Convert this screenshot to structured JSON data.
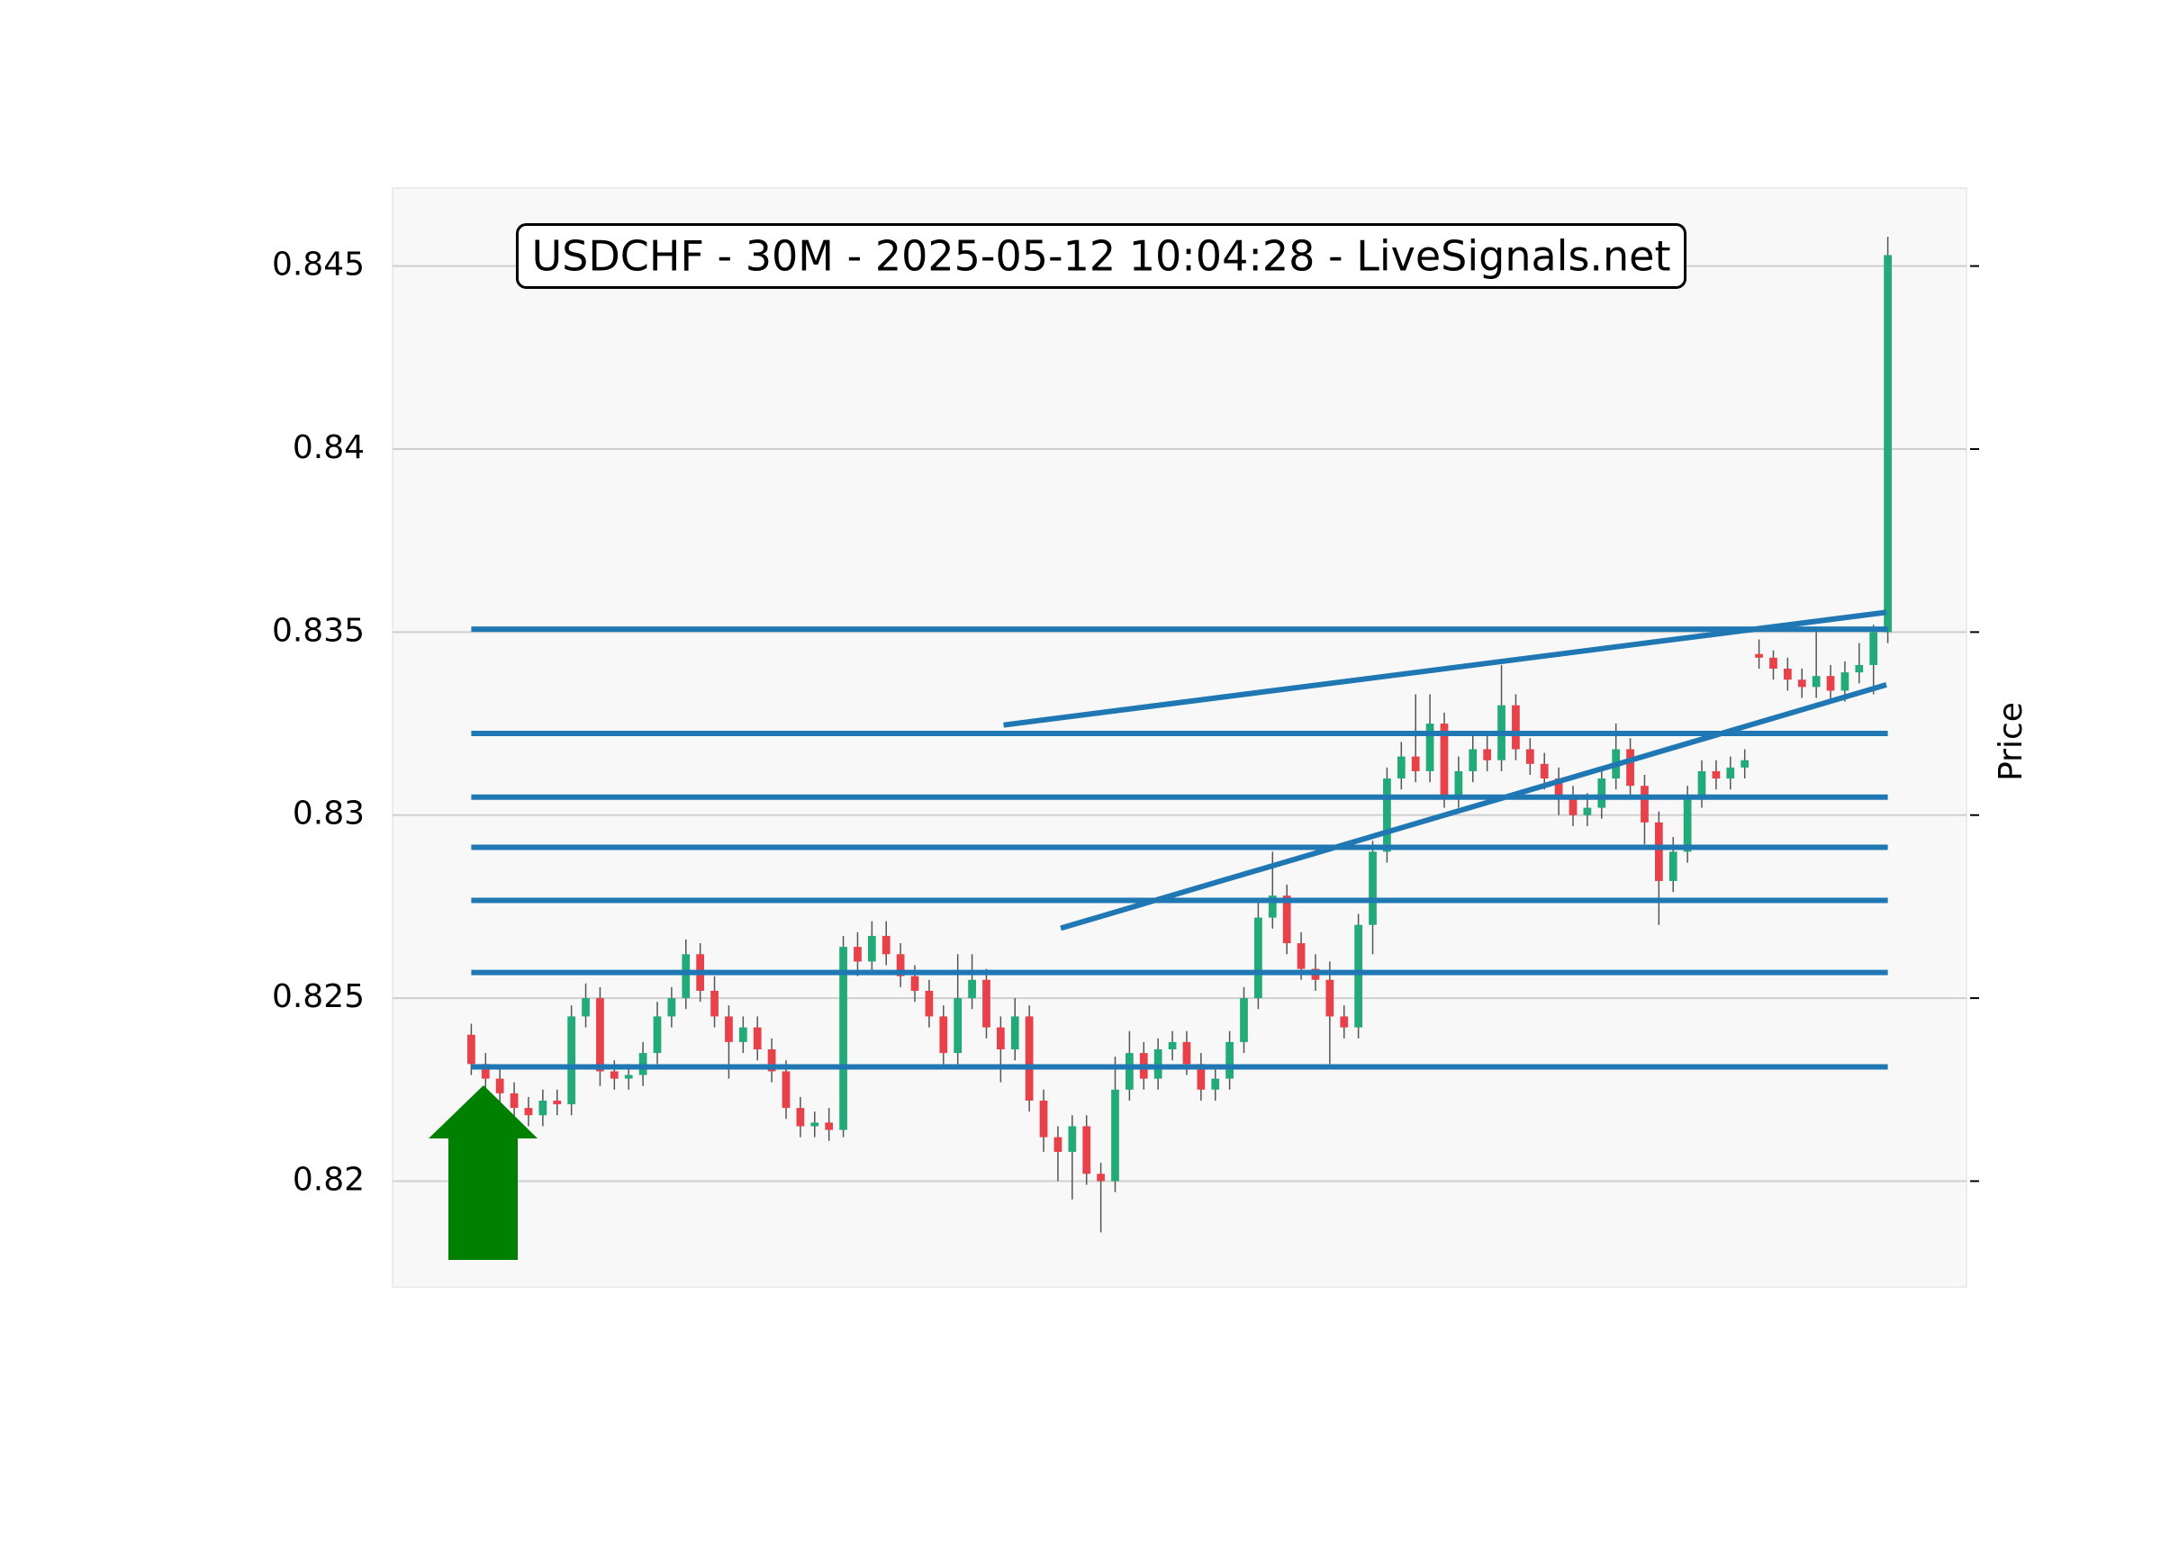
{
  "chart_data": {
    "type": "candlestick",
    "title": "USDCHF - 30M - 2025-05-12 10:04:28 - LiveSignals.net",
    "y_label": "Price",
    "ylim": [
      0.81711,
      0.84713
    ],
    "yticks": [
      0.82,
      0.825,
      0.83,
      0.835,
      0.84,
      0.845
    ],
    "xlim": [
      -5.5,
      104.5
    ],
    "grid": true,
    "up_color": "#22ab78",
    "down_color": "#e8414a",
    "level_color": "#1f77b4",
    "ohlc": [
      [
        0.824,
        0.8243,
        0.8229,
        0.8232
      ],
      [
        0.8232,
        0.8235,
        0.8225,
        0.8228
      ],
      [
        0.8228,
        0.8231,
        0.8221,
        0.8224
      ],
      [
        0.8224,
        0.8227,
        0.8217,
        0.822
      ],
      [
        0.822,
        0.8223,
        0.8215,
        0.8218
      ],
      [
        0.8218,
        0.8225,
        0.8215,
        0.8222
      ],
      [
        0.8222,
        0.8225,
        0.8218,
        0.8221
      ],
      [
        0.8221,
        0.8248,
        0.8218,
        0.8245
      ],
      [
        0.8245,
        0.8254,
        0.8242,
        0.825
      ],
      [
        0.825,
        0.8253,
        0.8226,
        0.823
      ],
      [
        0.823,
        0.8233,
        0.8225,
        0.8228
      ],
      [
        0.8228,
        0.8232,
        0.8225,
        0.8229
      ],
      [
        0.8229,
        0.8238,
        0.8226,
        0.8235
      ],
      [
        0.8235,
        0.8249,
        0.8232,
        0.8245
      ],
      [
        0.8245,
        0.8253,
        0.8242,
        0.825
      ],
      [
        0.825,
        0.8266,
        0.8247,
        0.8262
      ],
      [
        0.8262,
        0.8265,
        0.8249,
        0.8252
      ],
      [
        0.8252,
        0.8256,
        0.8242,
        0.8245
      ],
      [
        0.8245,
        0.8248,
        0.8228,
        0.8238
      ],
      [
        0.8238,
        0.8245,
        0.8235,
        0.8242
      ],
      [
        0.8242,
        0.8245,
        0.8233,
        0.8236
      ],
      [
        0.8236,
        0.8239,
        0.8227,
        0.823
      ],
      [
        0.823,
        0.8233,
        0.8217,
        0.822
      ],
      [
        0.822,
        0.8223,
        0.8212,
        0.8215
      ],
      [
        0.8215,
        0.8219,
        0.8212,
        0.8216
      ],
      [
        0.8216,
        0.822,
        0.8211,
        0.8214
      ],
      [
        0.8214,
        0.8267,
        0.8212,
        0.8264
      ],
      [
        0.8264,
        0.8268,
        0.8256,
        0.826
      ],
      [
        0.826,
        0.8271,
        0.8257,
        0.8267
      ],
      [
        0.8267,
        0.8271,
        0.8259,
        0.8262
      ],
      [
        0.8262,
        0.8265,
        0.8253,
        0.8256
      ],
      [
        0.8256,
        0.8259,
        0.8249,
        0.8252
      ],
      [
        0.8252,
        0.8255,
        0.8242,
        0.8245
      ],
      [
        0.8245,
        0.8248,
        0.8232,
        0.8235
      ],
      [
        0.8235,
        0.8262,
        0.8232,
        0.825
      ],
      [
        0.825,
        0.8262,
        0.8247,
        0.8255
      ],
      [
        0.8255,
        0.8258,
        0.8239,
        0.8242
      ],
      [
        0.8242,
        0.8245,
        0.8227,
        0.8236
      ],
      [
        0.8236,
        0.825,
        0.8233,
        0.8245
      ],
      [
        0.8245,
        0.8248,
        0.8219,
        0.8222
      ],
      [
        0.8222,
        0.8225,
        0.8208,
        0.8212
      ],
      [
        0.8212,
        0.8215,
        0.82,
        0.8208
      ],
      [
        0.8208,
        0.8218,
        0.8195,
        0.8215
      ],
      [
        0.8215,
        0.8218,
        0.8199,
        0.8202
      ],
      [
        0.8202,
        0.8205,
        0.8186,
        0.82
      ],
      [
        0.82,
        0.8234,
        0.8197,
        0.8225
      ],
      [
        0.8225,
        0.8241,
        0.8222,
        0.8235
      ],
      [
        0.8235,
        0.8238,
        0.8225,
        0.8228
      ],
      [
        0.8228,
        0.8239,
        0.8225,
        0.8236
      ],
      [
        0.8236,
        0.8241,
        0.8233,
        0.8238
      ],
      [
        0.8238,
        0.8241,
        0.8229,
        0.8232
      ],
      [
        0.8232,
        0.8235,
        0.8222,
        0.8225
      ],
      [
        0.8225,
        0.8231,
        0.8222,
        0.8228
      ],
      [
        0.8228,
        0.8241,
        0.8225,
        0.8238
      ],
      [
        0.8238,
        0.8253,
        0.8235,
        0.825
      ],
      [
        0.825,
        0.8276,
        0.8247,
        0.8272
      ],
      [
        0.8272,
        0.829,
        0.8269,
        0.8278
      ],
      [
        0.8278,
        0.8281,
        0.8262,
        0.8265
      ],
      [
        0.8265,
        0.8268,
        0.8255,
        0.8258
      ],
      [
        0.8258,
        0.8262,
        0.8252,
        0.8255
      ],
      [
        0.8255,
        0.826,
        0.8232,
        0.8245
      ],
      [
        0.8245,
        0.8248,
        0.8239,
        0.8242
      ],
      [
        0.8242,
        0.8273,
        0.8239,
        0.827
      ],
      [
        0.827,
        0.8293,
        0.8262,
        0.829
      ],
      [
        0.829,
        0.8313,
        0.8287,
        0.831
      ],
      [
        0.831,
        0.832,
        0.8307,
        0.8316
      ],
      [
        0.8316,
        0.8333,
        0.8309,
        0.8312
      ],
      [
        0.8312,
        0.8333,
        0.8309,
        0.8325
      ],
      [
        0.8325,
        0.8328,
        0.8302,
        0.8305
      ],
      [
        0.8305,
        0.8316,
        0.8302,
        0.8312
      ],
      [
        0.8312,
        0.8322,
        0.8309,
        0.8318
      ],
      [
        0.8318,
        0.8322,
        0.8312,
        0.8315
      ],
      [
        0.8315,
        0.8341,
        0.8312,
        0.833
      ],
      [
        0.833,
        0.8333,
        0.8315,
        0.8318
      ],
      [
        0.8318,
        0.8321,
        0.8311,
        0.8314
      ],
      [
        0.8314,
        0.8317,
        0.8307,
        0.831
      ],
      [
        0.831,
        0.8313,
        0.83,
        0.8305
      ],
      [
        0.8305,
        0.8308,
        0.8297,
        0.83
      ],
      [
        0.83,
        0.8306,
        0.8297,
        0.8302
      ],
      [
        0.8302,
        0.8313,
        0.8299,
        0.831
      ],
      [
        0.831,
        0.8325,
        0.8307,
        0.8318
      ],
      [
        0.8318,
        0.8321,
        0.8305,
        0.8308
      ],
      [
        0.8308,
        0.8311,
        0.8292,
        0.8298
      ],
      [
        0.8298,
        0.8301,
        0.827,
        0.8282
      ],
      [
        0.8282,
        0.8294,
        0.8279,
        0.829
      ],
      [
        0.829,
        0.8308,
        0.8287,
        0.8305
      ],
      [
        0.8305,
        0.8315,
        0.8302,
        0.8312
      ],
      [
        0.8312,
        0.8315,
        0.8307,
        0.831
      ],
      [
        0.831,
        0.8316,
        0.8307,
        0.8313
      ],
      [
        0.8313,
        0.8318,
        0.831,
        0.8315
      ],
      [
        0.8344,
        0.8348,
        0.834,
        0.8343
      ],
      [
        0.8343,
        0.8345,
        0.8337,
        0.834
      ],
      [
        0.834,
        0.8343,
        0.8334,
        0.8337
      ],
      [
        0.8337,
        0.834,
        0.8332,
        0.8335
      ],
      [
        0.8335,
        0.835,
        0.8332,
        0.8338
      ],
      [
        0.8338,
        0.8341,
        0.8331,
        0.8334
      ],
      [
        0.8334,
        0.8342,
        0.8331,
        0.8339
      ],
      [
        0.8339,
        0.8347,
        0.8336,
        0.8341
      ],
      [
        0.8341,
        0.8352,
        0.8333,
        0.835
      ],
      [
        0.835,
        0.8458,
        0.8347,
        0.8453
      ]
    ],
    "levels": [
      0.83508,
      0.83223,
      0.83049,
      0.82912,
      0.82767,
      0.8257,
      0.82312
    ],
    "levels_x": [
      0,
      99
    ],
    "trendlines": [
      {
        "x": [
          37.2,
          98.9
        ],
        "y": [
          0.83246,
          0.83554
        ]
      },
      {
        "x": [
          41.2,
          98.9
        ],
        "y": [
          0.82691,
          0.83356
        ]
      }
    ]
  }
}
